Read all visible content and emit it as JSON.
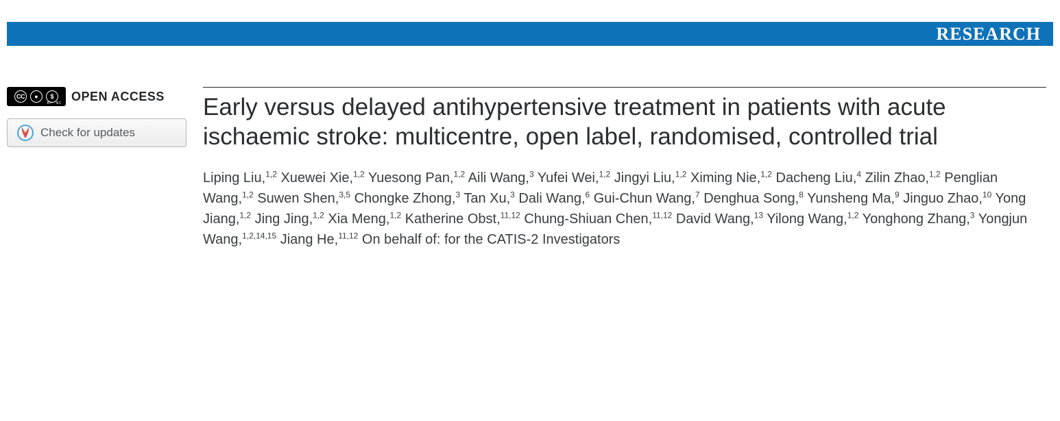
{
  "banner": {
    "label": "RESEARCH"
  },
  "sidebar": {
    "open_access_label": "OPEN ACCESS",
    "updates_label": "Check for updates"
  },
  "main": {
    "title": "Early versus delayed antihypertensive treatment in patients with acute ischaemic stroke: multicentre, open label, randomised, controlled trial",
    "authors": [
      {
        "name": "Liping Liu",
        "aff": "1,2"
      },
      {
        "name": "Xuewei Xie",
        "aff": "1,2"
      },
      {
        "name": "Yuesong Pan",
        "aff": "1,2"
      },
      {
        "name": "Aili Wang",
        "aff": "3"
      },
      {
        "name": "Yufei Wei",
        "aff": "1,2"
      },
      {
        "name": "Jingyi Liu",
        "aff": "1,2"
      },
      {
        "name": "Ximing Nie",
        "aff": "1,2"
      },
      {
        "name": "Dacheng Liu",
        "aff": "4"
      },
      {
        "name": "Zilin Zhao",
        "aff": "1,2"
      },
      {
        "name": "Penglian Wang",
        "aff": "1,2"
      },
      {
        "name": "Suwen Shen",
        "aff": "3,5"
      },
      {
        "name": "Chongke Zhong",
        "aff": "3"
      },
      {
        "name": "Tan Xu",
        "aff": "3"
      },
      {
        "name": "Dali Wang",
        "aff": "6"
      },
      {
        "name": "Gui-Chun Wang",
        "aff": "7"
      },
      {
        "name": "Denghua Song",
        "aff": "8"
      },
      {
        "name": "Yunsheng Ma",
        "aff": "9"
      },
      {
        "name": "Jinguo Zhao",
        "aff": "10"
      },
      {
        "name": "Yong Jiang",
        "aff": "1,2"
      },
      {
        "name": "Jing Jing",
        "aff": "1,2"
      },
      {
        "name": "Xia Meng",
        "aff": "1,2"
      },
      {
        "name": "Katherine Obst",
        "aff": "11,12"
      },
      {
        "name": "Chung-Shiuan Chen",
        "aff": "11,12"
      },
      {
        "name": "David Wang",
        "aff": "13"
      },
      {
        "name": "Yilong Wang",
        "aff": "1,2"
      },
      {
        "name": "Yonghong Zhang",
        "aff": "3"
      },
      {
        "name": "Yongjun Wang",
        "aff": "1,2,14,15"
      },
      {
        "name": "Jiang He",
        "aff": "11,12"
      }
    ],
    "behalf": "On behalf of: for the CATIS-2 Investigators"
  },
  "colors": {
    "banner_bg": "#0e72b8",
    "banner_text": "#ffffff",
    "text": "#24272a",
    "button_border": "#b7b7b7"
  }
}
